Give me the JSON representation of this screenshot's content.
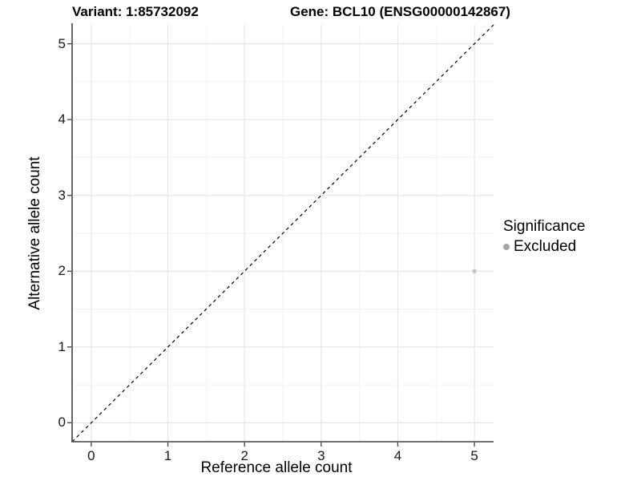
{
  "titles": {
    "variant": "Variant: 1:85732092",
    "gene": "Gene: BCL10 (ENSG00000142867)"
  },
  "chart_data": {
    "type": "scatter",
    "xlabel": "Reference allele count",
    "ylabel": "Alternative allele count",
    "xlim": [
      -0.25,
      5.25
    ],
    "ylim": [
      -0.25,
      5.25
    ],
    "xticks": [
      0,
      1,
      2,
      3,
      4,
      5
    ],
    "yticks": [
      0,
      1,
      2,
      3,
      4,
      5
    ],
    "grid": {
      "major": true,
      "minor": true
    },
    "series": [
      {
        "name": "Excluded",
        "color": "#c4c4c4",
        "points": [
          {
            "x": 5,
            "y": 2
          }
        ]
      }
    ],
    "reference_line": {
      "type": "identity",
      "style": "dashed",
      "color": "#000000"
    },
    "legend": {
      "position": "right",
      "title": "Significance",
      "entries": [
        {
          "label": "Excluded",
          "color": "#a6a6a6"
        }
      ]
    }
  },
  "colors": {
    "background": "#ffffff",
    "grid_major": "#e6e6e6",
    "grid_minor": "#f2f2f2",
    "axis_line": "#404040",
    "text": "#000000"
  }
}
